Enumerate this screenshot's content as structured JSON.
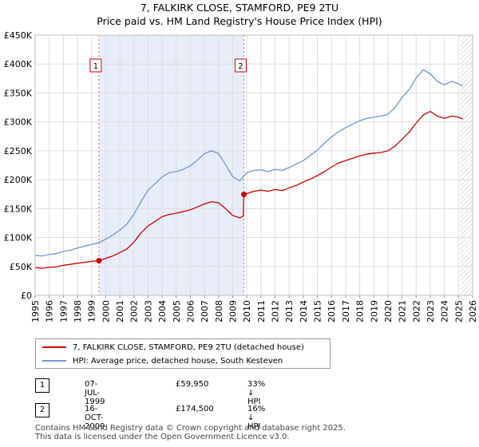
{
  "title_line1": "7, FALKIRK CLOSE, STAMFORD, PE9 2TU",
  "title_line2": "Price paid vs. HM Land Registry's House Price Index (HPI)",
  "chart_data": {
    "type": "line",
    "xlim": [
      1995,
      2026
    ],
    "ylim": [
      0,
      450000
    ],
    "y_ticks": [
      0,
      50000,
      100000,
      150000,
      200000,
      250000,
      300000,
      350000,
      400000,
      450000
    ],
    "y_tick_labels": [
      "£0",
      "£50K",
      "£100K",
      "£150K",
      "£200K",
      "£250K",
      "£300K",
      "£350K",
      "£400K",
      "£450K"
    ],
    "x_tick_labels": [
      "1995",
      "1996",
      "1997",
      "1998",
      "1999",
      "2000",
      "2001",
      "2002",
      "2003",
      "2004",
      "2005",
      "2006",
      "2007",
      "2008",
      "2009",
      "2010",
      "2011",
      "2012",
      "2013",
      "2014",
      "2015",
      "2016",
      "2017",
      "2018",
      "2019",
      "2020",
      "2021",
      "2022",
      "2023",
      "2024",
      "2025",
      "2026"
    ],
    "grid": true,
    "shaded_span": [
      1999.52,
      2009.79
    ],
    "hatched_from": 2025.1,
    "series": [
      {
        "name": "7, FALKIRK CLOSE, STAMFORD, PE9 2TU (detached house)",
        "color": "#cc0000",
        "x": [
          1995.0,
          1995.5,
          1996.0,
          1996.5,
          1997.0,
          1997.5,
          1998.0,
          1998.5,
          1999.0,
          1999.52,
          2000.0,
          2000.5,
          2001.0,
          2001.5,
          2002.0,
          2002.5,
          2003.0,
          2003.5,
          2004.0,
          2004.5,
          2005.0,
          2005.5,
          2006.0,
          2006.5,
          2007.0,
          2007.5,
          2008.0,
          2008.5,
          2009.0,
          2009.5,
          2009.75,
          2009.79,
          2010.0,
          2010.5,
          2011.0,
          2011.5,
          2012.0,
          2012.5,
          2013.0,
          2013.5,
          2014.0,
          2014.5,
          2015.0,
          2015.5,
          2016.0,
          2016.5,
          2017.0,
          2017.5,
          2018.0,
          2018.5,
          2019.0,
          2019.5,
          2020.0,
          2020.5,
          2021.0,
          2021.5,
          2022.0,
          2022.5,
          2023.0,
          2023.5,
          2024.0,
          2024.5,
          2025.0,
          2025.3
        ],
        "y": [
          48000,
          47000,
          48500,
          49000,
          52000,
          53500,
          55500,
          57000,
          59000,
          59950,
          64000,
          68000,
          74000,
          80000,
          92000,
          108000,
          120000,
          128000,
          136000,
          140000,
          142000,
          145000,
          148000,
          153000,
          158000,
          162000,
          160000,
          150000,
          138000,
          134000,
          137000,
          174500,
          176000,
          180000,
          182000,
          180000,
          183000,
          181000,
          186000,
          190000,
          196000,
          201000,
          207000,
          214000,
          222000,
          229000,
          233000,
          237000,
          241000,
          244000,
          246000,
          247000,
          250000,
          258000,
          270000,
          282000,
          298000,
          312000,
          318000,
          310000,
          306000,
          310000,
          308000,
          305000
        ]
      },
      {
        "name": "HPI: Average price, detached house, South Kesteven",
        "color": "#6d97c9",
        "x": [
          1995.0,
          1995.5,
          1996.0,
          1996.5,
          1997.0,
          1997.5,
          1998.0,
          1998.5,
          1999.0,
          1999.5,
          2000.0,
          2000.5,
          2001.0,
          2001.5,
          2002.0,
          2002.5,
          2003.0,
          2003.5,
          2004.0,
          2004.5,
          2005.0,
          2005.5,
          2006.0,
          2006.5,
          2007.0,
          2007.5,
          2008.0,
          2008.5,
          2009.0,
          2009.5,
          2010.0,
          2010.5,
          2011.0,
          2011.5,
          2012.0,
          2012.5,
          2013.0,
          2013.5,
          2014.0,
          2014.5,
          2015.0,
          2015.5,
          2016.0,
          2016.5,
          2017.0,
          2017.5,
          2018.0,
          2018.5,
          2019.0,
          2019.5,
          2020.0,
          2020.5,
          2021.0,
          2021.5,
          2022.0,
          2022.5,
          2023.0,
          2023.5,
          2024.0,
          2024.5,
          2025.0,
          2025.3
        ],
        "y": [
          69000,
          68000,
          71000,
          72000,
          76000,
          78000,
          82000,
          85000,
          88000,
          91000,
          97000,
          104000,
          113000,
          123000,
          140000,
          162000,
          182000,
          193000,
          205000,
          212000,
          214000,
          218000,
          224000,
          234000,
          245000,
          250000,
          245000,
          226000,
          205000,
          198000,
          212000,
          216000,
          217000,
          214000,
          218000,
          216000,
          221000,
          227000,
          233000,
          242000,
          251000,
          263000,
          274000,
          283000,
          290000,
          296000,
          302000,
          306000,
          308000,
          310000,
          313000,
          325000,
          342000,
          356000,
          376000,
          390000,
          383000,
          370000,
          364000,
          370000,
          366000,
          362000
        ]
      }
    ],
    "annotations": [
      {
        "label": "1",
        "x": 1999.52,
        "y": 59950
      },
      {
        "label": "2",
        "x": 2009.79,
        "y": 174500
      }
    ]
  },
  "legend": {
    "red_label": "7, FALKIRK CLOSE, STAMFORD, PE9 2TU (detached house)",
    "blue_label": "HPI: Average price, detached house, South Kesteven"
  },
  "sales": [
    {
      "num": "1",
      "date": "07-JUL-1999",
      "price": "£59,950",
      "delta": "33% ↓ HPI"
    },
    {
      "num": "2",
      "date": "16-OCT-2009",
      "price": "£174,500",
      "delta": "16% ↓ HPI"
    }
  ],
  "footer": {
    "line1": "Contains HM Land Registry data © Crown copyright and database right 2025.",
    "line2": "This data is licensed under the Open Government Licence v3.0."
  }
}
